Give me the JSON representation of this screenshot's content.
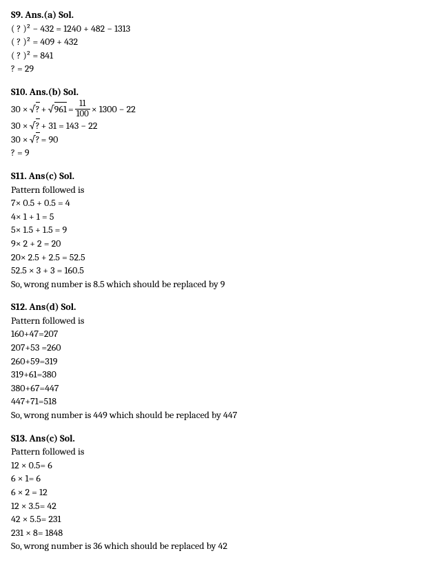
{
  "s9": {
    "header": "S9. Ans.(a) Sol.",
    "l1_a": "( ? )² − 432 = 1240 + 482 − 1313",
    "l2": "( ? )² = 409 + 432",
    "l3": "( ? )² = 841",
    "l4": "? = 29"
  },
  "s10": {
    "header": "S10. Ans.(b) Sol.",
    "l1_left": "30 × ",
    "l1_sqrt1": "?",
    "l1_mid1": "+ ",
    "l1_sqrt2": "961",
    "l1_mid2": " = ",
    "l1_frac_num": "11",
    "l1_frac_den": "100",
    "l1_right": " × 1300 − 22",
    "l2_left": "30 × ",
    "l2_sqrt": "?",
    "l2_right": "+ 31 = 143 − 22",
    "l3_left": "30 × ",
    "l3_sqrt": "?",
    "l3_right": " = 90",
    "l4": "? = 9"
  },
  "s11": {
    "header": "S11. Ans(c) Sol.",
    "intro": "Pattern followed is",
    "l1": "7× 0.5 + 0.5 = 4",
    "l2": "4× 1 + 1 = 5",
    "l3": "5× 1.5 + 1.5 = 9",
    "l4": "9× 2 + 2 = 20",
    "l5": "20× 2.5 + 2.5 = 52.5",
    "l6": "52.5 × 3 + 3 = 160.5",
    "conclusion": "So, wrong number is 8.5 which should be replaced by 9"
  },
  "s12": {
    "header": "S12. Ans(d) Sol.",
    "intro": "Pattern followed is",
    "l1": "160+47=207",
    "l2": "207+53 =260",
    "l3": "260+59=319",
    "l4": "319+61=380",
    "l5": "380+67=447",
    "l6": "447+71=518",
    "conclusion": "So, wrong number is 449 which should be replaced by 447"
  },
  "s13": {
    "header": "S13. Ans(c) Sol.",
    "intro": "Pattern followed is",
    "l1": "12 × 0.5= 6",
    "l2": "6 × 1= 6",
    "l3": "6 × 2 = 12",
    "l4": "12 × 3.5= 42",
    "l5": "42 × 5.5= 231",
    "l6": "231 × 8= 1848",
    "conclusion": "So, wrong number is 36 which should be replaced by 42"
  }
}
